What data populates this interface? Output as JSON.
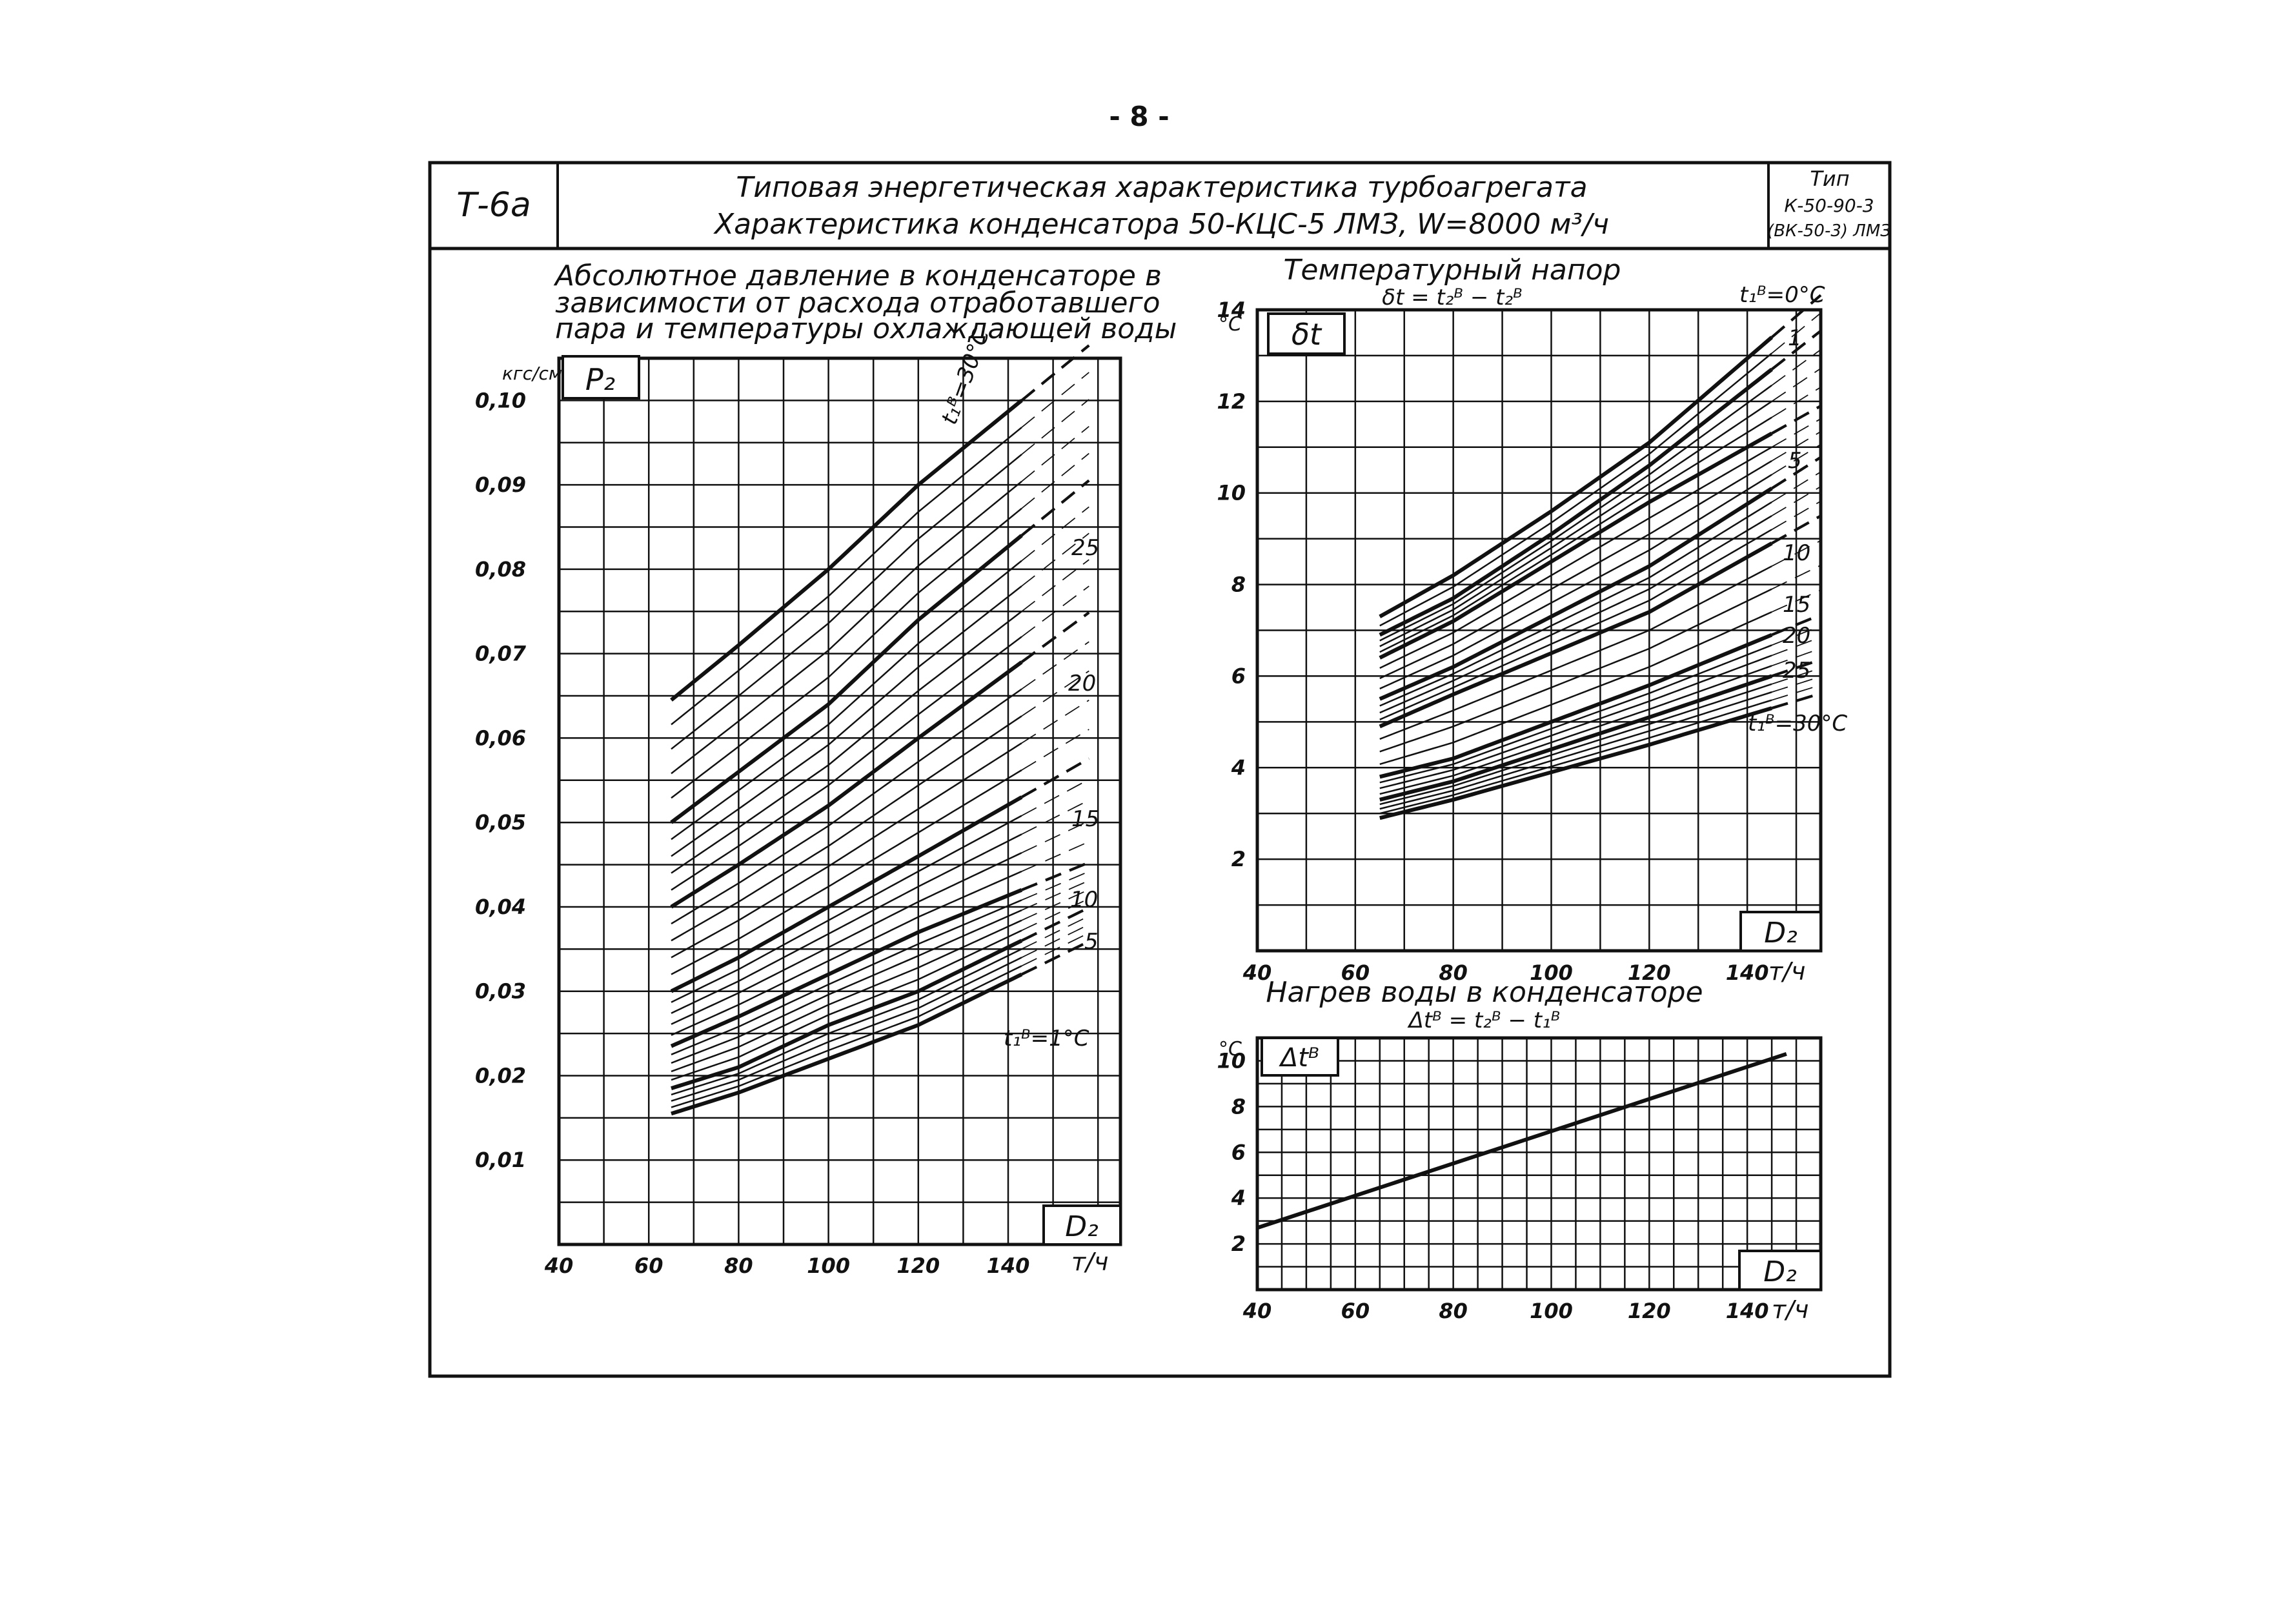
{
  "page_number": "- 8 -",
  "header": {
    "code": "Т-6а",
    "title_line1": "Типовая энергетическая характеристика турбоагрегата",
    "title_line2": "Характеристика конденсатора 50-КЦС-5 ЛМЗ, W=8000 м³/ч",
    "type_label": "Тип",
    "type_value1": "К-50-90-3",
    "type_value2": "(ВК-50-3) ЛМЗ"
  },
  "colors": {
    "ink": "#111111",
    "paper": "#ffffff"
  },
  "chart_data": [
    {
      "type": "line",
      "title_lines": [
        "Абсолютное давление в конденсаторе в",
        "зависимости от расхода отработавшего",
        "пара и температуры охлаждающей воды"
      ],
      "symbol": "Р₂",
      "x_symbol": "D₂",
      "xunit": "т/ч",
      "yunit": "кгс/см²",
      "xlim": [
        40,
        165
      ],
      "ylim": [
        0.0,
        0.105
      ],
      "xticks": [
        "40",
        "60",
        "80",
        "100",
        "120",
        "140"
      ],
      "yticks": [
        "0,01",
        "0,02",
        "0,03",
        "0,04",
        "0,05",
        "0,06",
        "0,07",
        "0,08",
        "0,09",
        "0,10"
      ],
      "x": [
        65,
        80,
        100,
        120,
        143
      ],
      "series": [
        {
          "t": 1,
          "values": [
            0.0155,
            0.018,
            0.022,
            0.026,
            0.032
          ]
        },
        {
          "t": 5,
          "values": [
            0.0185,
            0.021,
            0.026,
            0.03,
            0.036
          ]
        },
        {
          "t": 10,
          "values": [
            0.0235,
            0.027,
            0.032,
            0.037,
            0.042
          ]
        },
        {
          "t": 15,
          "values": [
            0.03,
            0.034,
            0.04,
            0.046,
            0.053
          ]
        },
        {
          "t": 20,
          "values": [
            0.04,
            0.045,
            0.052,
            0.06,
            0.069
          ]
        },
        {
          "t": 25,
          "values": [
            0.05,
            0.056,
            0.064,
            0.074,
            0.084
          ]
        },
        {
          "t": 30,
          "values": [
            0.0645,
            0.071,
            0.08,
            0.09,
            0.1
          ]
        }
      ],
      "curve_labels": [
        "t₁ᴮ=30°С",
        "25",
        "20",
        "15",
        "10",
        "5",
        "t₁ᴮ=1°С"
      ],
      "extrapolation": "dashed beyond 143 т/ч"
    },
    {
      "type": "line",
      "title_lines": [
        "Температурный напор",
        "δt = t₂ᴮ − t₂ᴮ"
      ],
      "symbol": "δt",
      "x_symbol": "D₂",
      "xunit": "т/ч",
      "yunit": "°С",
      "xlim": [
        40,
        155
      ],
      "ylim": [
        0,
        14
      ],
      "xticks": [
        "40",
        "60",
        "80",
        "100",
        "120",
        "140"
      ],
      "yticks": [
        "2",
        "4",
        "6",
        "8",
        "10",
        "12",
        "14"
      ],
      "x": [
        65,
        80,
        100,
        120,
        145
      ],
      "series": [
        {
          "t": 0,
          "values": [
            7.3,
            8.2,
            9.6,
            11.1,
            13.4
          ]
        },
        {
          "t": 1,
          "values": [
            6.9,
            7.7,
            9.1,
            10.6,
            12.7
          ]
        },
        {
          "t": 5,
          "values": [
            6.4,
            7.2,
            8.5,
            9.8,
            11.3
          ]
        },
        {
          "t": 10,
          "values": [
            5.5,
            6.2,
            7.3,
            8.4,
            10.1
          ]
        },
        {
          "t": 15,
          "values": [
            4.9,
            5.6,
            6.5,
            7.4,
            8.9
          ]
        },
        {
          "t": 20,
          "values": [
            3.8,
            4.2,
            5.0,
            5.8,
            6.9
          ]
        },
        {
          "t": 25,
          "values": [
            3.3,
            3.7,
            4.4,
            5.1,
            6.0
          ]
        },
        {
          "t": 30,
          "values": [
            2.9,
            3.3,
            3.9,
            4.5,
            5.3
          ]
        }
      ],
      "curve_labels": [
        "t₁ᴮ=0°С",
        "1",
        "5",
        "10",
        "15",
        "20",
        "25",
        "t₁ᴮ=30°С"
      ],
      "extrapolation": "dashed beyond 145 т/ч"
    },
    {
      "type": "line",
      "title_lines": [
        "Нагрев воды в конденсаторе",
        "Δtᴮ = t₂ᴮ − t₁ᴮ"
      ],
      "symbol": "Δtᴮ",
      "x_symbol": "D₂",
      "xunit": "т/ч",
      "yunit": "°С",
      "xlim": [
        40,
        155
      ],
      "ylim": [
        0,
        11
      ],
      "xticks": [
        "40",
        "60",
        "80",
        "100",
        "120",
        "140"
      ],
      "yticks": [
        "2",
        "4",
        "6",
        "8",
        "10"
      ],
      "x": [
        40,
        148
      ],
      "series": [
        {
          "values": [
            2.7,
            10.3
          ]
        }
      ]
    }
  ]
}
